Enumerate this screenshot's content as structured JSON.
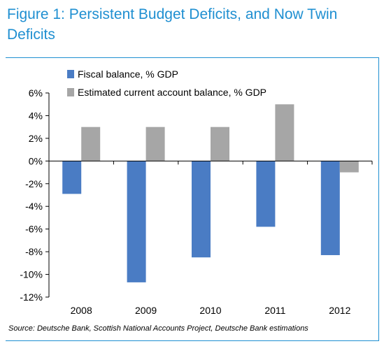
{
  "title_lines": [
    "Figure 1: Persistent Budget Deficits, and Now Twin",
    "Deficits"
  ],
  "source": "Source: Deutsche Bank, Scottish National Accounts Project, Deutsche Bank estimations",
  "colors": {
    "accent": "#1f8fd1",
    "fiscal": "#4a7cc4",
    "current_account": "#a6a6a6"
  },
  "chart_data": {
    "type": "bar",
    "title": "Figure 1: Persistent Budget Deficits, and Now Twin Deficits",
    "categories": [
      "2008",
      "2009",
      "2010",
      "2011",
      "2012"
    ],
    "series": [
      {
        "name": "Fiscal balance, % GDP",
        "values": [
          -2.9,
          -10.7,
          -8.5,
          -5.8,
          -8.3
        ]
      },
      {
        "name": "Estimated current account balance, % GDP",
        "values": [
          3,
          3,
          3,
          5,
          -1
        ]
      }
    ],
    "ylim": [
      -12,
      6
    ],
    "yticks": [
      6,
      4,
      2,
      0,
      -2,
      -4,
      -6,
      -8,
      -10,
      -12
    ],
    "ytick_labels": [
      "6%",
      "4%",
      "2%",
      "0%",
      "-2%",
      "-4%",
      "-6%",
      "-8%",
      "-10%",
      "-12%"
    ],
    "xlabel": "",
    "ylabel": "",
    "legend_position": "top-left",
    "grid": false
  }
}
